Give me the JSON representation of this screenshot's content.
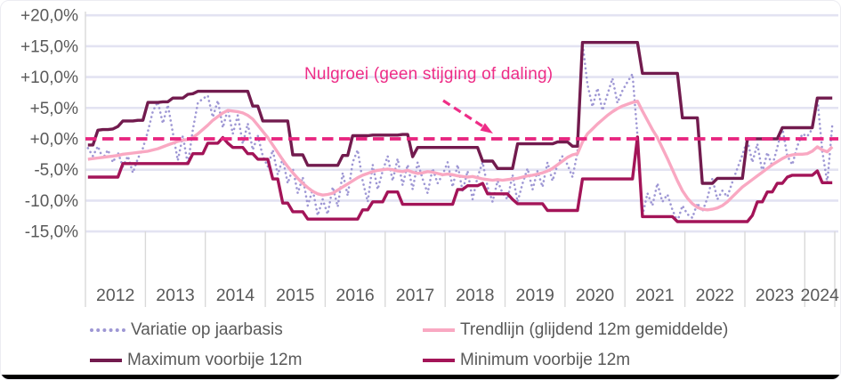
{
  "chart_data": {
    "type": "line",
    "title": "",
    "period": {
      "start": "2012-01",
      "end": "2024-06",
      "resolution": "monthly"
    },
    "annotation": {
      "text": "Nulgroei (geen stijging of daling)",
      "color": "#ee2d87"
    },
    "zero_line": {
      "value": 0,
      "style": "dashed",
      "color": "#e8247f"
    },
    "grid": "horizontal",
    "legend_position": "bottom",
    "colors": {
      "grid": "#e3e3f2",
      "tick": "#d9d9d9",
      "axis_text": "#595959"
    },
    "y_axis": {
      "tick_labels": [
        "+20,0%",
        "+15,0%",
        "+10,0%",
        "+5,0%",
        "+0,0%",
        "-5,0%",
        "-10,0%",
        "-15,0%"
      ],
      "tick_values": [
        20,
        15,
        10,
        5,
        0,
        -5,
        -10,
        -15
      ],
      "min": -15,
      "max": 20,
      "unit": "%"
    },
    "x_axis": {
      "year_labels": [
        "2012",
        "2013",
        "2014",
        "2015",
        "2016",
        "2017",
        "2018",
        "2019",
        "2020",
        "2021",
        "2022",
        "2023",
        "2024"
      ],
      "months_per_year": [
        12,
        12,
        12,
        12,
        12,
        12,
        12,
        12,
        12,
        12,
        12,
        12,
        6
      ]
    },
    "series": [
      {
        "name": "Variatie op jaarbasis",
        "style": "dotted",
        "color": "#9e97d4",
        "width": 2.6,
        "values": [
          -1.5,
          -2.8,
          -1.2,
          -3.2,
          -1.8,
          -3.8,
          -2.2,
          -4.5,
          -2.8,
          -5.5,
          -3.2,
          -1.5,
          1.2,
          4.5,
          6.0,
          2.5,
          5.5,
          1.0,
          -3.5,
          0.5,
          -4.2,
          1.5,
          5.8,
          6.5,
          7.0,
          3.5,
          6.2,
          1.8,
          4.8,
          0.8,
          3.8,
          -0.8,
          2.5,
          -1.8,
          0.5,
          -2.8,
          -4.5,
          -1.8,
          -5.8,
          -3.2,
          -7.2,
          -4.8,
          -8.8,
          -6.2,
          -10.8,
          -8.2,
          -12.4,
          -9.8,
          -12.2,
          -7.8,
          -11.0,
          -5.5,
          -9.2,
          -3.8,
          -1.8,
          -6.8,
          -10.2,
          -4.2,
          -8.2,
          -5.2,
          -2.8,
          -6.8,
          -3.2,
          -7.5,
          -4.2,
          -8.2,
          -3.8,
          -6.5,
          -8.8,
          -4.8,
          -7.2,
          -5.8,
          -3.8,
          -7.8,
          -4.2,
          -8.5,
          -5.2,
          -9.8,
          -6.2,
          -3.8,
          -7.8,
          -10.2,
          -6.8,
          -8.8,
          -9.8,
          -5.8,
          -10.2,
          -7.2,
          -4.8,
          -8.2,
          -5.2,
          -7.8,
          -3.8,
          -6.8,
          -4.2,
          -2.8,
          -4.2,
          -6.2,
          -2.2,
          15.6,
          8.8,
          5.2,
          8.2,
          4.6,
          7.2,
          9.8,
          5.8,
          7.8,
          9.2,
          10.5,
          0.5,
          -12.4,
          -8.8,
          -10.8,
          -7.2,
          -10.2,
          -9.0,
          -11.5,
          -13.4,
          -10.8,
          -12.2,
          -12.8,
          -10.4,
          -11.8,
          -9.6,
          -6.4,
          -9.8,
          -8.4,
          -9.4,
          -7.0,
          -4.8,
          -2.6,
          -0.2,
          -3.8,
          -0.8,
          -5.4,
          -2.2,
          -4.4,
          -1.4,
          1.8,
          -2.8,
          -4.2,
          -1.2,
          0.8,
          0.4,
          1.6,
          6.6,
          -2.0,
          -7.1,
          2.2
        ]
      },
      {
        "name": "Trendlijn (glijdend 12m gemiddelde)",
        "style": "solid",
        "color": "#f9a8c2",
        "width": 3.4,
        "values": [
          -3.3,
          -3.2,
          -3.1,
          -3.0,
          -2.9,
          -2.8,
          -2.7,
          -2.5,
          -2.4,
          -2.3,
          -2.2,
          -2.1,
          -2.0,
          -1.8,
          -1.6,
          -1.3,
          -1.0,
          -0.7,
          -0.4,
          -0.2,
          -0.1,
          0.2,
          0.8,
          1.5,
          2.2,
          3.0,
          3.6,
          4.2,
          4.6,
          4.5,
          4.4,
          4.2,
          3.8,
          3.2,
          2.2,
          1.2,
          0.2,
          -1.0,
          -2.2,
          -3.4,
          -4.5,
          -5.5,
          -6.4,
          -7.2,
          -7.9,
          -8.5,
          -8.9,
          -9.1,
          -9.0,
          -8.8,
          -8.3,
          -7.8,
          -7.3,
          -6.8,
          -6.3,
          -5.9,
          -5.6,
          -5.3,
          -5.1,
          -5.0,
          -4.9,
          -5.0,
          -5.2,
          -5.3,
          -5.1,
          -5.4,
          -5.6,
          -5.5,
          -5.3,
          -5.4,
          -5.6,
          -5.8,
          -5.7,
          -5.8,
          -6.0,
          -6.1,
          -6.2,
          -6.1,
          -6.3,
          -6.5,
          -6.6,
          -6.7,
          -6.6,
          -6.7,
          -6.6,
          -6.5,
          -6.4,
          -6.2,
          -6.0,
          -5.9,
          -5.7,
          -5.5,
          -5.2,
          -4.8,
          -4.2,
          -3.6,
          -3.0,
          -2.6,
          -2.4,
          -0.5,
          0.8,
          1.6,
          2.4,
          3.1,
          3.8,
          4.4,
          4.9,
          5.3,
          5.6,
          5.9,
          6.1,
          4.5,
          3.0,
          1.5,
          0.2,
          -1.5,
          -3.2,
          -5.0,
          -6.8,
          -8.4,
          -9.6,
          -10.5,
          -11.1,
          -11.4,
          -11.5,
          -11.4,
          -11.2,
          -10.8,
          -10.2,
          -9.4,
          -8.6,
          -7.8,
          -7.2,
          -6.6,
          -6.0,
          -5.4,
          -4.8,
          -4.2,
          -3.7,
          -3.2,
          -2.8,
          -2.6,
          -2.5,
          -2.5,
          -2.4,
          -2.0,
          -1.3,
          -1.8,
          -2.1,
          -1.3
        ]
      },
      {
        "name": "Maximum voorbije 12m",
        "style": "solid",
        "color": "#721b4e",
        "width": 3.4,
        "values": [
          -1.0,
          -1.0,
          1.4,
          1.5,
          1.5,
          1.6,
          2.0,
          2.9,
          2.9,
          2.9,
          3.0,
          3.0,
          5.9,
          5.9,
          5.9,
          6.0,
          6.0,
          6.6,
          6.6,
          6.6,
          7.2,
          7.3,
          7.7,
          7.7,
          7.7,
          7.7,
          7.7,
          7.7,
          7.7,
          7.7,
          7.7,
          7.7,
          7.7,
          5.3,
          5.3,
          2.9,
          2.9,
          2.9,
          2.9,
          2.9,
          2.9,
          -2.6,
          -2.6,
          -2.6,
          -4.3,
          -4.3,
          -4.3,
          -4.3,
          -4.3,
          -4.3,
          -4.3,
          -2.7,
          -2.7,
          0.5,
          0.5,
          0.5,
          0.5,
          0.6,
          0.6,
          0.6,
          0.6,
          0.6,
          0.6,
          0.7,
          0.7,
          -2.9,
          -1.4,
          -1.4,
          -1.4,
          -1.4,
          -1.4,
          -1.4,
          -1.4,
          -1.4,
          -1.4,
          -1.4,
          -1.4,
          -1.4,
          -1.4,
          -3.6,
          -3.6,
          -3.6,
          -4.8,
          -4.8,
          -4.8,
          -4.8,
          -0.8,
          -0.8,
          -0.8,
          -0.8,
          -0.8,
          -0.8,
          -0.8,
          -0.8,
          -0.5,
          -0.5,
          -0.5,
          -1.2,
          -1.2,
          15.6,
          15.6,
          15.6,
          15.6,
          15.6,
          15.6,
          15.6,
          15.6,
          15.6,
          15.6,
          15.6,
          15.6,
          10.6,
          10.6,
          10.6,
          10.6,
          10.6,
          10.6,
          10.6,
          10.6,
          3.4,
          3.4,
          3.4,
          3.4,
          -7.2,
          -7.2,
          -7.2,
          -6.4,
          -6.4,
          -6.4,
          -6.4,
          -6.4,
          -6.4,
          0.0,
          0.0,
          0.0,
          0.0,
          0.0,
          0.0,
          0.0,
          1.8,
          1.8,
          1.8,
          1.8,
          1.8,
          1.8,
          1.8,
          6.6,
          6.6,
          6.6,
          6.6
        ]
      },
      {
        "name": "Minimum voorbije 12m",
        "style": "solid",
        "color": "#a31458",
        "width": 3.4,
        "values": [
          -6.2,
          -6.2,
          -6.2,
          -6.2,
          -6.2,
          -6.2,
          -6.2,
          -4.0,
          -4.0,
          -4.0,
          -4.0,
          -4.0,
          -4.0,
          -4.0,
          -4.0,
          -4.0,
          -4.0,
          -4.0,
          -4.0,
          -4.0,
          -4.0,
          -2.4,
          -2.4,
          -2.4,
          -0.7,
          -0.7,
          -0.7,
          0.2,
          -0.7,
          -1.4,
          -1.4,
          -1.4,
          -2.4,
          -2.4,
          -3.3,
          -3.3,
          -3.3,
          -6.5,
          -6.5,
          -10.4,
          -10.4,
          -11.8,
          -11.8,
          -11.8,
          -13.0,
          -13.0,
          -13.0,
          -13.0,
          -13.0,
          -13.0,
          -13.0,
          -13.0,
          -13.0,
          -13.0,
          -13.0,
          -11.5,
          -11.5,
          -10.2,
          -10.2,
          -10.2,
          -8.6,
          -8.6,
          -8.6,
          -10.6,
          -10.6,
          -10.6,
          -10.6,
          -10.6,
          -10.6,
          -10.6,
          -10.6,
          -10.6,
          -10.6,
          -10.6,
          -8.2,
          -8.2,
          -7.6,
          -7.6,
          -7.6,
          -7.2,
          -8.9,
          -8.9,
          -8.9,
          -8.9,
          -8.9,
          -9.8,
          -10.5,
          -10.5,
          -10.5,
          -10.5,
          -10.5,
          -10.5,
          -11.6,
          -11.6,
          -11.6,
          -11.6,
          -11.6,
          -11.6,
          -11.6,
          -6.5,
          -6.5,
          -6.5,
          -6.5,
          -6.5,
          -6.5,
          -6.5,
          -6.5,
          -6.5,
          -6.5,
          -6.5,
          0.3,
          -12.6,
          -12.6,
          -12.6,
          -12.6,
          -12.6,
          -12.6,
          -12.6,
          -13.4,
          -13.4,
          -13.4,
          -13.4,
          -13.4,
          -13.4,
          -13.4,
          -13.4,
          -13.4,
          -13.4,
          -13.4,
          -13.4,
          -13.4,
          -13.4,
          -13.4,
          -12.4,
          -10.2,
          -10.2,
          -8.6,
          -8.6,
          -7.2,
          -7.2,
          -6.2,
          -5.9,
          -5.9,
          -5.9,
          -5.9,
          -5.9,
          -5.2,
          -7.1,
          -7.1,
          -7.1
        ]
      }
    ]
  }
}
